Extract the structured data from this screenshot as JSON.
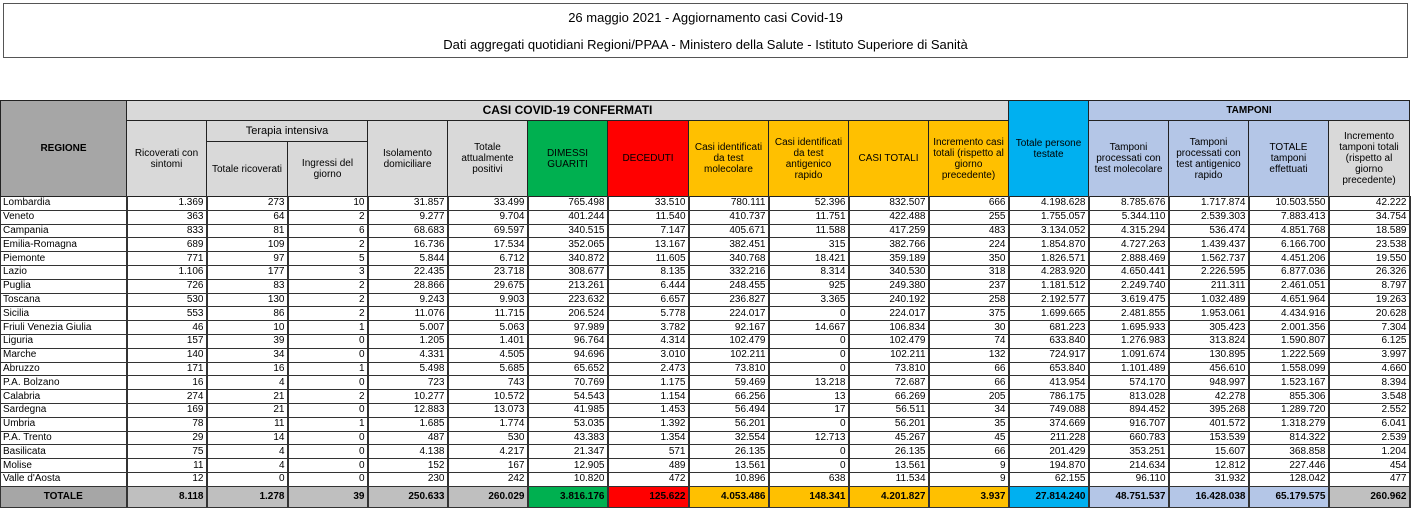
{
  "title": {
    "line1": "26 maggio 2021 - Aggiornamento casi Covid-19",
    "line2": "Dati aggregati quotidiani Regioni/PPAA - Ministero della Salute - Istituto Superiore di Sanità"
  },
  "colors": {
    "dimessi": "#00b050",
    "deceduti": "#ff0000",
    "casi": "#ffc000",
    "persone": "#00b0f0",
    "tamponi": "#b4c6e7",
    "header": "#d9d9d9"
  },
  "header": {
    "regione": "REGIONE",
    "casi_group": "CASI COVID-19 CONFERMATI",
    "tamponi_group": "TAMPONI",
    "terapia": "Terapia intensiva",
    "cols": [
      "Ricoverati con sintomi",
      "Totale ricoverati",
      "Ingressi del giorno",
      "Isolamento domiciliare",
      "Totale attualmente positivi",
      "DIMESSI GUARITI",
      "DECEDUTI",
      "Casi identificati da test molecolare",
      "Casi identificati da test antigenico rapido",
      "CASI TOTALI",
      "Incremento casi totali (rispetto al giorno precedente)",
      "Totale persone testate",
      "Tamponi processati con test molecolare",
      "Tamponi processati con test antigenico rapido",
      "TOTALE tamponi effettuati",
      "Incremento tamponi totali (rispetto al giorno precedente)"
    ]
  },
  "rows": [
    [
      "Lombardia",
      "1.369",
      "273",
      "10",
      "31.857",
      "33.499",
      "765.498",
      "33.510",
      "780.111",
      "52.396",
      "832.507",
      "666",
      "4.198.628",
      "8.785.676",
      "1.717.874",
      "10.503.550",
      "42.222"
    ],
    [
      "Veneto",
      "363",
      "64",
      "2",
      "9.277",
      "9.704",
      "401.244",
      "11.540",
      "410.737",
      "11.751",
      "422.488",
      "255",
      "1.755.057",
      "5.344.110",
      "2.539.303",
      "7.883.413",
      "34.754"
    ],
    [
      "Campania",
      "833",
      "81",
      "6",
      "68.683",
      "69.597",
      "340.515",
      "7.147",
      "405.671",
      "11.588",
      "417.259",
      "483",
      "3.134.052",
      "4.315.294",
      "536.474",
      "4.851.768",
      "18.589"
    ],
    [
      "Emilia-Romagna",
      "689",
      "109",
      "2",
      "16.736",
      "17.534",
      "352.065",
      "13.167",
      "382.451",
      "315",
      "382.766",
      "224",
      "1.854.870",
      "4.727.263",
      "1.439.437",
      "6.166.700",
      "23.538"
    ],
    [
      "Piemonte",
      "771",
      "97",
      "5",
      "5.844",
      "6.712",
      "340.872",
      "11.605",
      "340.768",
      "18.421",
      "359.189",
      "350",
      "1.826.571",
      "2.888.469",
      "1.562.737",
      "4.451.206",
      "19.550"
    ],
    [
      "Lazio",
      "1.106",
      "177",
      "3",
      "22.435",
      "23.718",
      "308.677",
      "8.135",
      "332.216",
      "8.314",
      "340.530",
      "318",
      "4.283.920",
      "4.650.441",
      "2.226.595",
      "6.877.036",
      "26.326"
    ],
    [
      "Puglia",
      "726",
      "83",
      "2",
      "28.866",
      "29.675",
      "213.261",
      "6.444",
      "248.455",
      "925",
      "249.380",
      "237",
      "1.181.512",
      "2.249.740",
      "211.311",
      "2.461.051",
      "8.797"
    ],
    [
      "Toscana",
      "530",
      "130",
      "2",
      "9.243",
      "9.903",
      "223.632",
      "6.657",
      "236.827",
      "3.365",
      "240.192",
      "258",
      "2.192.577",
      "3.619.475",
      "1.032.489",
      "4.651.964",
      "19.263"
    ],
    [
      "Sicilia",
      "553",
      "86",
      "2",
      "11.076",
      "11.715",
      "206.524",
      "5.778",
      "224.017",
      "0",
      "224.017",
      "375",
      "1.699.665",
      "2.481.855",
      "1.953.061",
      "4.434.916",
      "20.628"
    ],
    [
      "Friuli Venezia Giulia",
      "46",
      "10",
      "1",
      "5.007",
      "5.063",
      "97.989",
      "3.782",
      "92.167",
      "14.667",
      "106.834",
      "30",
      "681.223",
      "1.695.933",
      "305.423",
      "2.001.356",
      "7.304"
    ],
    [
      "Liguria",
      "157",
      "39",
      "0",
      "1.205",
      "1.401",
      "96.764",
      "4.314",
      "102.479",
      "0",
      "102.479",
      "74",
      "633.840",
      "1.276.983",
      "313.824",
      "1.590.807",
      "6.125"
    ],
    [
      "Marche",
      "140",
      "34",
      "0",
      "4.331",
      "4.505",
      "94.696",
      "3.010",
      "102.211",
      "0",
      "102.211",
      "132",
      "724.917",
      "1.091.674",
      "130.895",
      "1.222.569",
      "3.997"
    ],
    [
      "Abruzzo",
      "171",
      "16",
      "1",
      "5.498",
      "5.685",
      "65.652",
      "2.473",
      "73.810",
      "0",
      "73.810",
      "66",
      "653.840",
      "1.101.489",
      "456.610",
      "1.558.099",
      "4.660"
    ],
    [
      "P.A. Bolzano",
      "16",
      "4",
      "0",
      "723",
      "743",
      "70.769",
      "1.175",
      "59.469",
      "13.218",
      "72.687",
      "66",
      "413.954",
      "574.170",
      "948.997",
      "1.523.167",
      "8.394"
    ],
    [
      "Calabria",
      "274",
      "21",
      "2",
      "10.277",
      "10.572",
      "54.543",
      "1.154",
      "66.256",
      "13",
      "66.269",
      "205",
      "786.175",
      "813.028",
      "42.278",
      "855.306",
      "3.548"
    ],
    [
      "Sardegna",
      "169",
      "21",
      "0",
      "12.883",
      "13.073",
      "41.985",
      "1.453",
      "56.494",
      "17",
      "56.511",
      "34",
      "749.088",
      "894.452",
      "395.268",
      "1.289.720",
      "2.552"
    ],
    [
      "Umbria",
      "78",
      "11",
      "1",
      "1.685",
      "1.774",
      "53.035",
      "1.392",
      "56.201",
      "0",
      "56.201",
      "35",
      "374.669",
      "916.707",
      "401.572",
      "1.318.279",
      "6.041"
    ],
    [
      "P.A. Trento",
      "29",
      "14",
      "0",
      "487",
      "530",
      "43.383",
      "1.354",
      "32.554",
      "12.713",
      "45.267",
      "45",
      "211.228",
      "660.783",
      "153.539",
      "814.322",
      "2.539"
    ],
    [
      "Basilicata",
      "75",
      "4",
      "0",
      "4.138",
      "4.217",
      "21.347",
      "571",
      "26.135",
      "0",
      "26.135",
      "66",
      "201.429",
      "353.251",
      "15.607",
      "368.858",
      "1.204"
    ],
    [
      "Molise",
      "11",
      "4",
      "0",
      "152",
      "167",
      "12.905",
      "489",
      "13.561",
      "0",
      "13.561",
      "9",
      "194.870",
      "214.634",
      "12.812",
      "227.446",
      "454"
    ],
    [
      "Valle d'Aosta",
      "12",
      "0",
      "0",
      "230",
      "242",
      "10.820",
      "472",
      "10.896",
      "638",
      "11.534",
      "9",
      "62.155",
      "96.110",
      "31.932",
      "128.042",
      "477"
    ]
  ],
  "total": [
    "TOTALE",
    "8.118",
    "1.278",
    "39",
    "250.633",
    "260.029",
    "3.816.176",
    "125.622",
    "4.053.486",
    "148.341",
    "4.201.827",
    "3.937",
    "27.814.240",
    "48.751.537",
    "16.428.038",
    "65.179.575",
    "260.962"
  ]
}
